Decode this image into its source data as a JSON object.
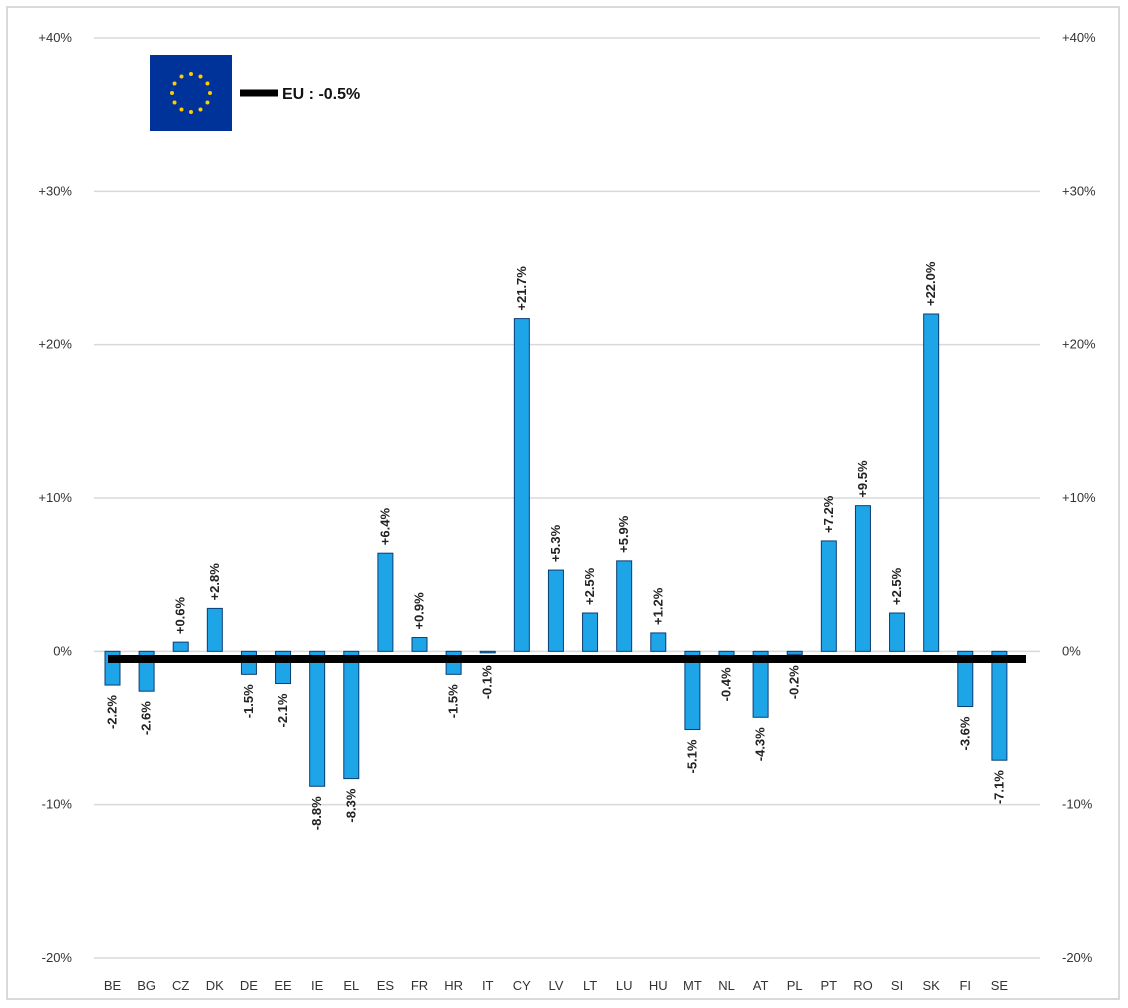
{
  "chart_data": {
    "type": "bar",
    "categories": [
      "BE",
      "BG",
      "CZ",
      "DK",
      "DE",
      "EE",
      "IE",
      "EL",
      "ES",
      "FR",
      "HR",
      "IT",
      "CY",
      "LV",
      "LT",
      "LU",
      "HU",
      "MT",
      "NL",
      "AT",
      "PL",
      "PT",
      "RO",
      "SI",
      "SK",
      "FI",
      "SE"
    ],
    "values": [
      -2.2,
      -2.6,
      0.6,
      2.8,
      -1.5,
      -2.1,
      -8.8,
      -8.3,
      6.4,
      0.9,
      -1.5,
      -0.1,
      21.7,
      5.3,
      2.5,
      5.9,
      1.2,
      -5.1,
      -0.4,
      -4.3,
      -0.2,
      7.2,
      9.5,
      2.5,
      22.0,
      -3.6,
      -7.1
    ],
    "data_labels": [
      "-2.2%",
      "-2.6%",
      "+0.6%",
      "+2.8%",
      "-1.5%",
      "-2.1%",
      "-8.8%",
      "-8.3%",
      "+6.4%",
      "+0.9%",
      "-1.5%",
      "-0.1%",
      "+21.7%",
      "+5.3%",
      "+2.5%",
      "+5.9%",
      "+1.2%",
      "-5.1%",
      "-0.4%",
      "-4.3%",
      "-0.2%",
      "+7.2%",
      "+9.5%",
      "+2.5%",
      "+22.0%",
      "-3.6%",
      "-7.1%"
    ],
    "reference_line": {
      "label": "EU : -0.5%",
      "value": -0.5
    },
    "ylim": [
      -20,
      40
    ],
    "y_ticks": [
      "+40%",
      "+30%",
      "+20%",
      "+10%",
      "0%",
      "-10%",
      "-20%"
    ],
    "y_tick_values": [
      40,
      30,
      20,
      10,
      0,
      -10,
      -20
    ],
    "title": "",
    "xlabel": "",
    "ylabel": "",
    "grid": true,
    "legend_position": "top-left",
    "colors": {
      "bar": "#1ea5e8",
      "bar_edge": "#0a3d75",
      "reference": "#000000",
      "grid": "#d9d9d9",
      "flag_bg": "#003399",
      "flag_star": "#ffcc00"
    }
  },
  "legend": {
    "icon": "eu-flag-icon",
    "label": "EU : -0.5%"
  }
}
